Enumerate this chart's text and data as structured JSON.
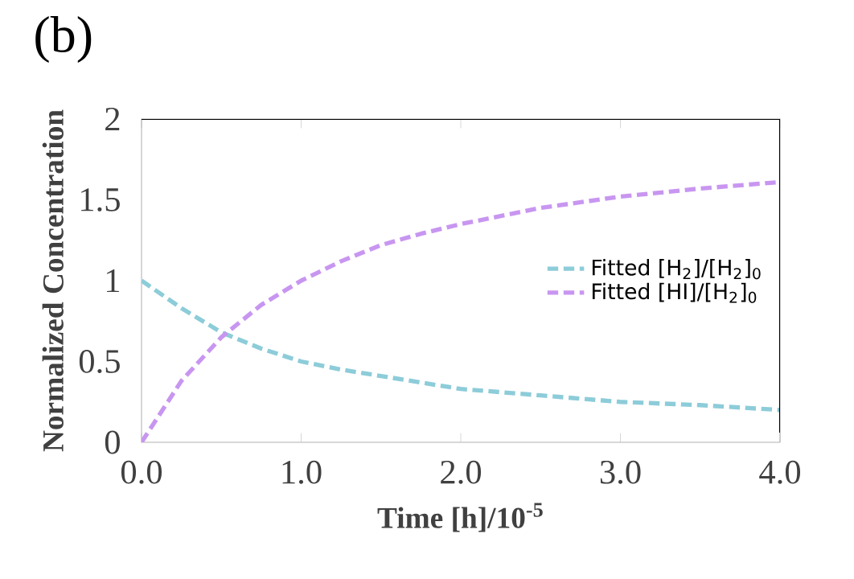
{
  "chart_data": {
    "type": "line",
    "title": "(b)",
    "xlabel": "Time [h]/10$^{-5}$",
    "ylabel": "Normalized Concentration",
    "x": [
      0,
      0.25,
      0.5,
      0.75,
      1.0,
      1.25,
      1.5,
      1.75,
      2.0,
      2.5,
      3.0,
      3.5,
      4.0
    ],
    "series": [
      {
        "name": "Fitted [H$_{2}$]/[H$_{2}$]$_{0}$",
        "color": "#8dccd9",
        "values": [
          1.0,
          0.83,
          0.68,
          0.58,
          0.5,
          0.45,
          0.41,
          0.37,
          0.33,
          0.29,
          0.25,
          0.23,
          0.2
        ]
      },
      {
        "name": "Fitted [HI]/[H$_{2}$]$_{0}$",
        "color": "#c896f0",
        "values": [
          0,
          0.38,
          0.65,
          0.85,
          1.0,
          1.12,
          1.22,
          1.29,
          1.35,
          1.45,
          1.52,
          1.57,
          1.61
        ]
      }
    ],
    "xlim": [
      0,
      4
    ],
    "ylim": [
      0,
      2
    ],
    "xticks": [
      {
        "value": 0,
        "label": "0.0"
      },
      {
        "value": 1,
        "label": "1.0"
      },
      {
        "value": 2,
        "label": "2.0"
      },
      {
        "value": 3,
        "label": "3.0"
      },
      {
        "value": 4,
        "label": "4.0"
      }
    ],
    "yticks": [
      0,
      0.5,
      1,
      1.5,
      2
    ],
    "legend": "right",
    "line_style": "dashed",
    "marker": "none",
    "grid": false
  }
}
